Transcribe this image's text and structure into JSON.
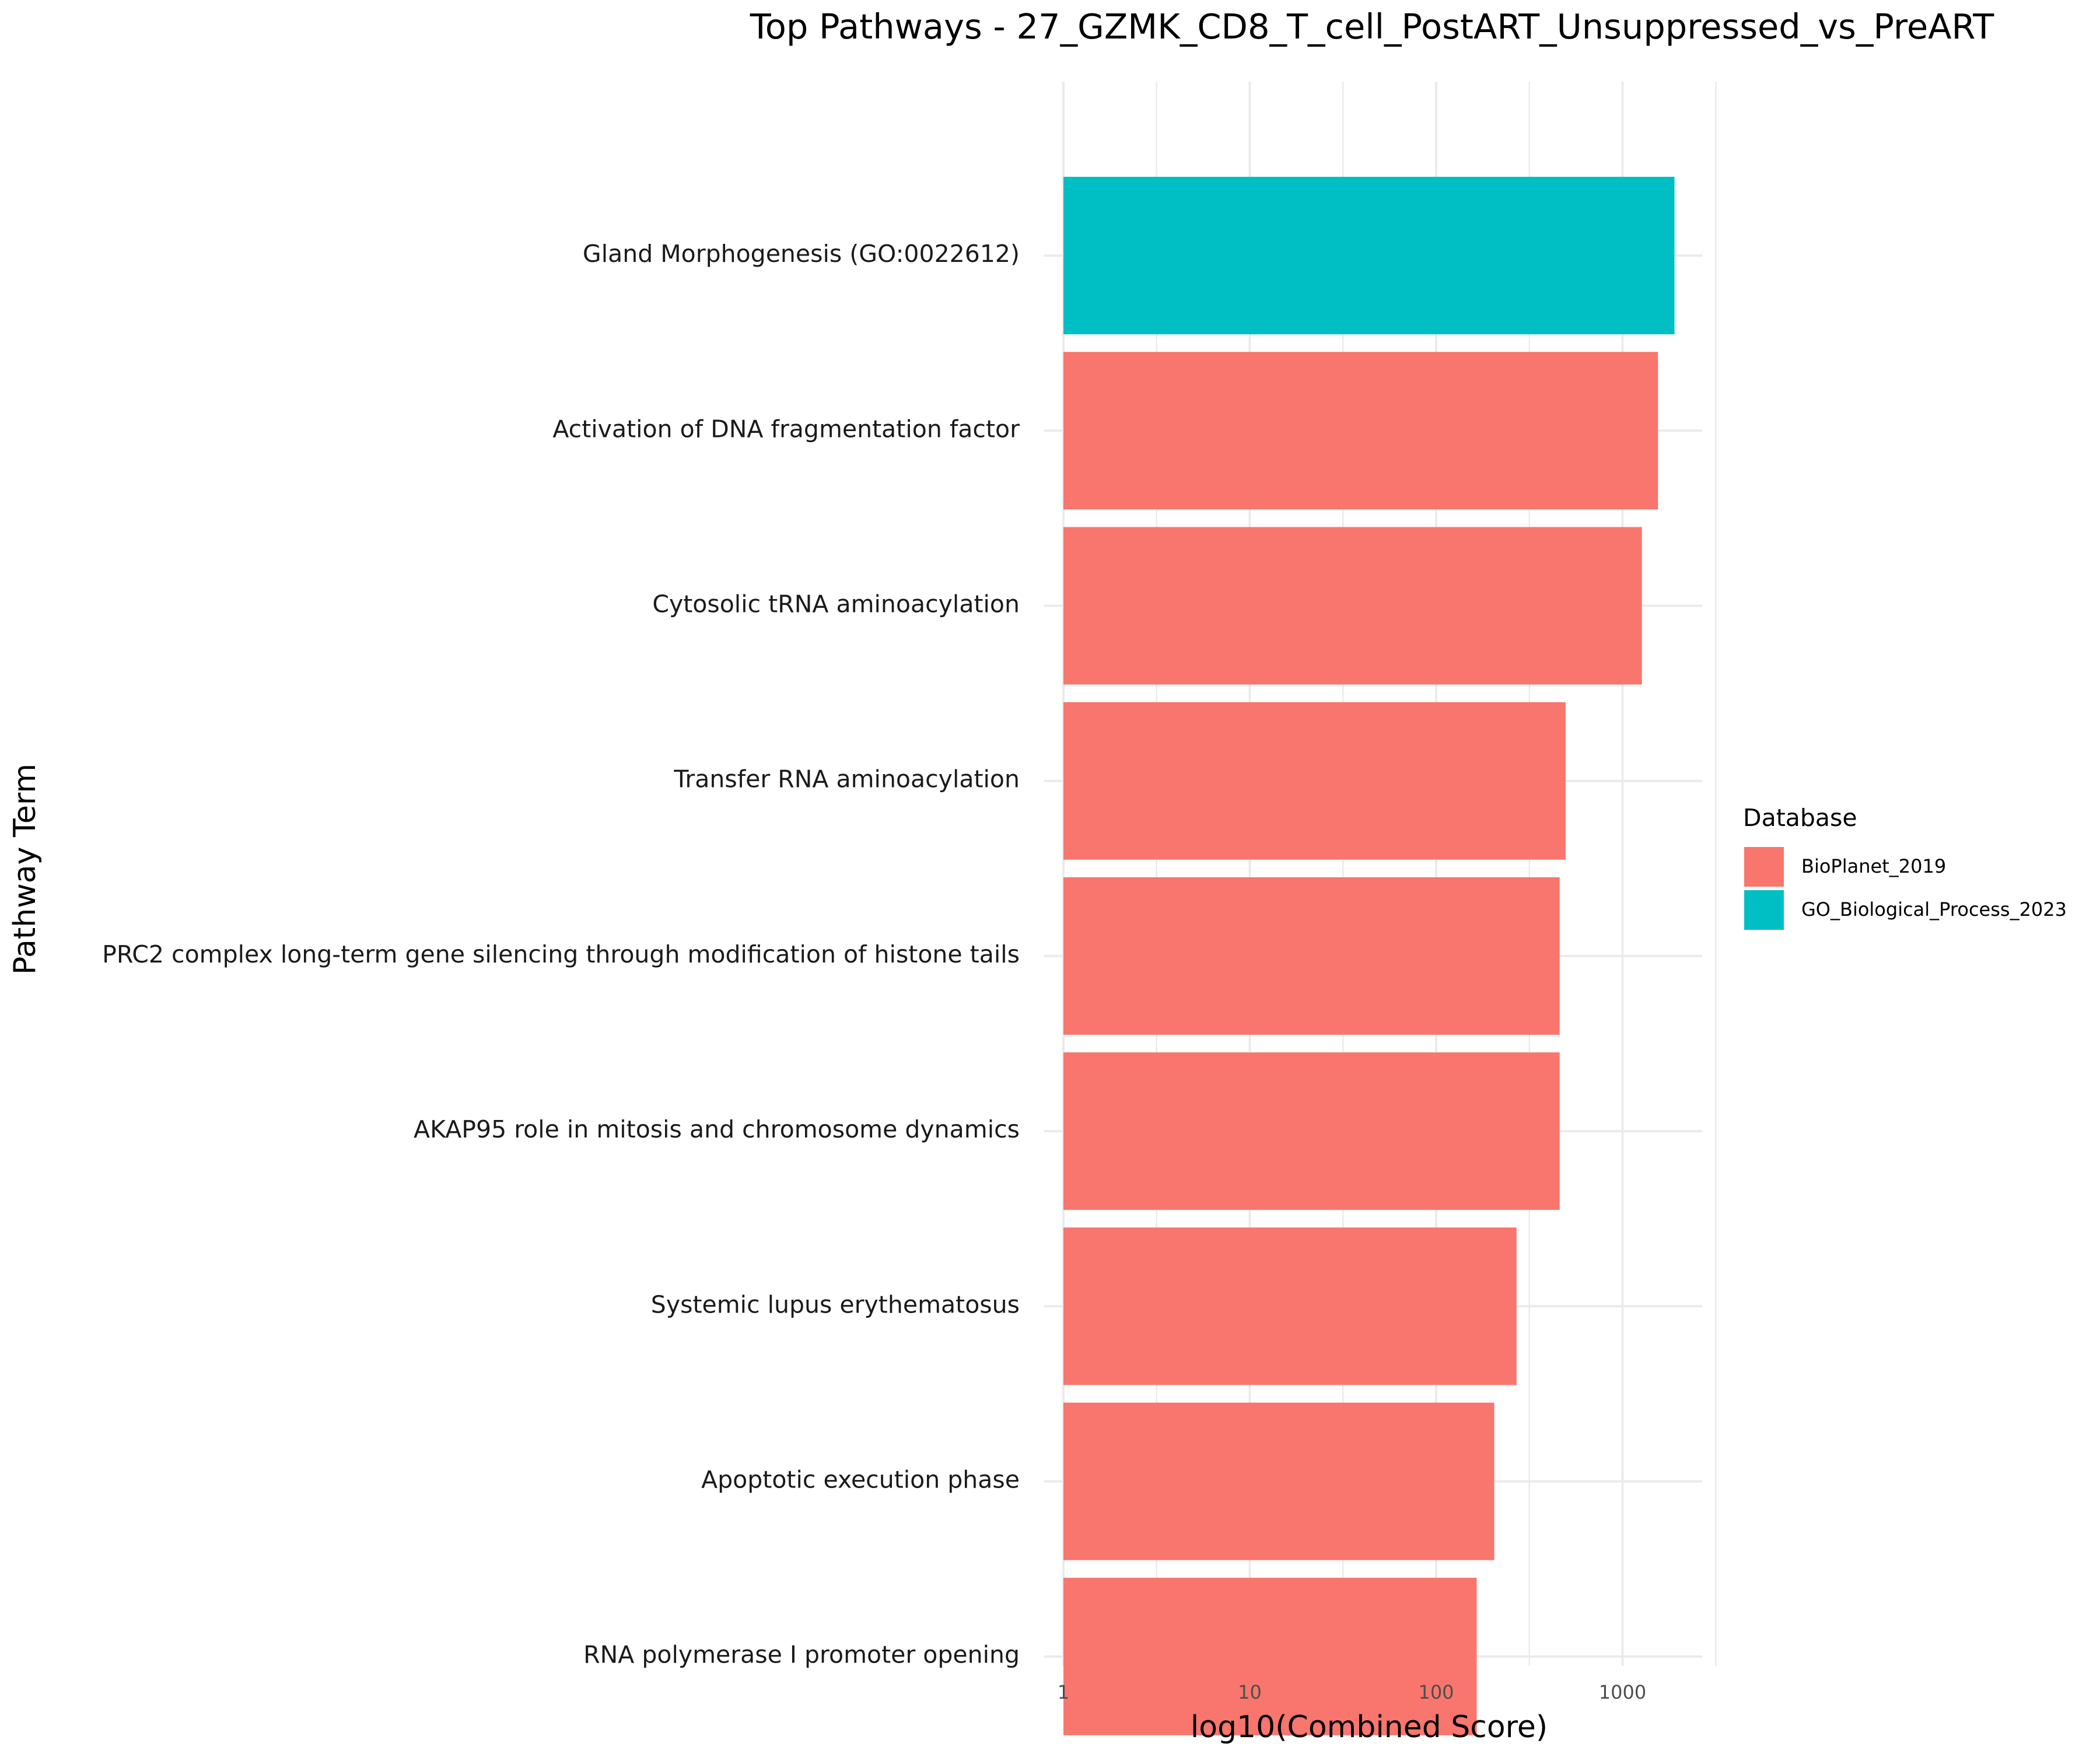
{
  "chart_data": {
    "type": "bar",
    "orientation": "horizontal",
    "title": "Top Pathways - 27_GZMK_CD8_T_cell_PostART_Unsuppressed_vs_PreART",
    "xlabel": "log10(Combined Score)",
    "ylabel": "Pathway Term",
    "x_scale": "log10",
    "xlim": [
      1,
      2600
    ],
    "x_ticks": [
      1,
      10,
      100,
      1000
    ],
    "x_tick_labels": [
      "1",
      "10",
      "100",
      "1000"
    ],
    "grid": true,
    "legend": {
      "title": "Database",
      "placement": "right",
      "entries": [
        {
          "name": "BioPlanet_2019",
          "color": "#F8766D"
        },
        {
          "name": "GO_Biological_Process_2023",
          "color": "#00BFC4"
        }
      ]
    },
    "categories": [
      "Gland Morphogenesis (GO:0022612)",
      "Activation of DNA fragmentation factor",
      "Cytosolic tRNA aminoacylation",
      "Transfer RNA aminoacylation",
      "PRC2 complex long-term gene silencing through modification of histone tails",
      "AKAP95 role in mitosis and chromosome dynamics",
      "Systemic lupus erythematosus",
      "Apoptotic execution  phase",
      "RNA polymerase I promoter opening"
    ],
    "values": [
      1900,
      1550,
      1270,
      495,
      460,
      460,
      270,
      205,
      165
    ],
    "databases": [
      "GO_Biological_Process_2023",
      "BioPlanet_2019",
      "BioPlanet_2019",
      "BioPlanet_2019",
      "BioPlanet_2019",
      "BioPlanet_2019",
      "BioPlanet_2019",
      "BioPlanet_2019",
      "BioPlanet_2019"
    ]
  }
}
